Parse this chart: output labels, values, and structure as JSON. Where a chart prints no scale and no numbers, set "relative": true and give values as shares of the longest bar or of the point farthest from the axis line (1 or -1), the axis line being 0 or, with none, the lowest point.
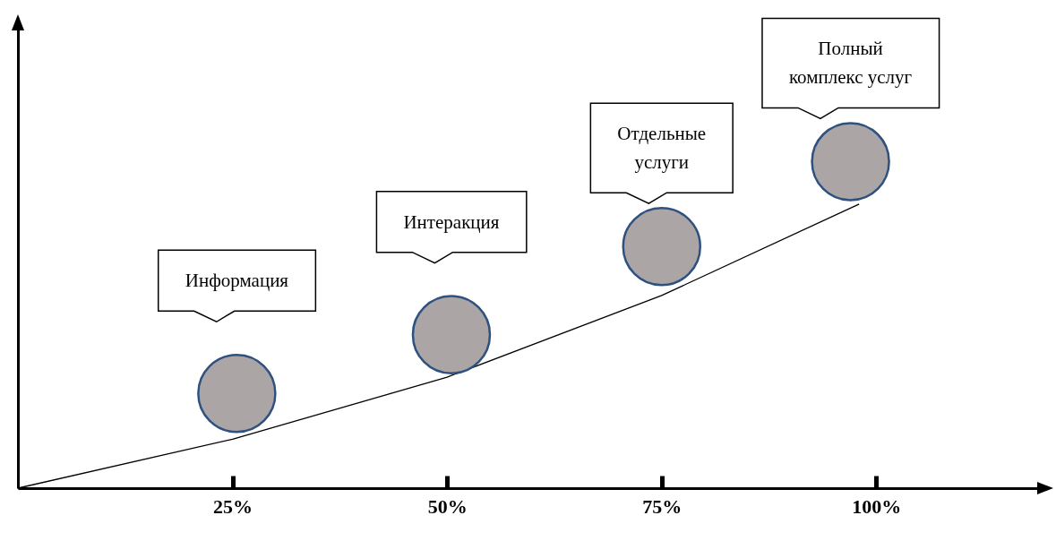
{
  "chart_data": {
    "type": "line",
    "relative": true,
    "xlim": [
      0,
      120
    ],
    "xticks": [
      {
        "value": 25,
        "label": "25%"
      },
      {
        "value": 50,
        "label": "50%"
      },
      {
        "value": 75,
        "label": "75%"
      },
      {
        "value": 100,
        "label": "100%"
      }
    ],
    "grid": false,
    "series": [
      {
        "color": "#000000",
        "x": [
          0,
          25,
          50,
          75,
          98
        ],
        "values": [
          0,
          0.15,
          0.34,
          0.59,
          0.87
        ]
      },
      {
        "type": "scatter",
        "color": "#aba5a5",
        "marker": "circle",
        "x": [
          25.5,
          50.5,
          75,
          97
        ],
        "values": [
          0.29,
          0.47,
          0.74,
          1
        ]
      }
    ],
    "annotations": [
      "Информация",
      "Интеракция",
      "Отдельные\nуслуги",
      "Полный\nкомплекс услуг"
    ]
  }
}
